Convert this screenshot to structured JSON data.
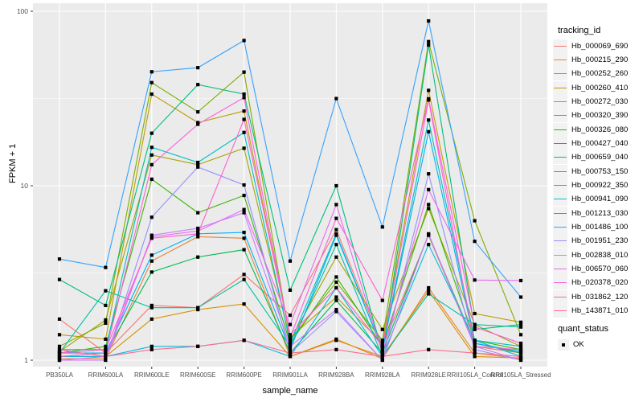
{
  "figure": {
    "background": "#ffffff",
    "panel_background": "#ebebeb",
    "grid_color": "#ffffff",
    "tick_color": "#333333",
    "tick_label_color": "#4d4d4d",
    "legend_key_fill": "#f2f2f2",
    "point_color": "#000000"
  },
  "chart_data": {
    "type": "line",
    "title": "",
    "xlabel": "sample_name",
    "ylabel": "FPKM + 1",
    "y_scale": "log10",
    "y_ticks": [
      "1",
      "10",
      "100"
    ],
    "y_tick_values": [
      1,
      10,
      100
    ],
    "y_minor_values": [
      3.1623,
      31.623
    ],
    "ylim": [
      0.92,
      105
    ],
    "grid": true,
    "legend_position": "right",
    "categories": [
      "PB350LA",
      "RRIM600LA",
      "RRIM600LE",
      "RRIM600SE",
      "RRIM600PE",
      "RRIM901LA",
      "RRIM928BA",
      "RRIM928LA",
      "RRIM928LE",
      "RRII105LA_Control",
      "RRII105LA_Stressed"
    ],
    "legend_title": "tracking_id",
    "legend2_title": "quant_status",
    "legend2_items": [
      {
        "label": "OK",
        "symbol": "filled-square"
      }
    ],
    "series": [
      {
        "name": "Hb_000069_690",
        "color": "#F8766D",
        "values": [
          1.72,
          1.1,
          2.06,
          2.0,
          3.1,
          1.81,
          5.6,
          1.2,
          5.2,
          1.2,
          1.1
        ]
      },
      {
        "name": "Hb_000215_290",
        "color": "#EA8331",
        "values": [
          1.02,
          1.02,
          3.7,
          5.1,
          5.0,
          1.05,
          1.32,
          1.02,
          2.6,
          1.1,
          1.02
        ]
      },
      {
        "name": "Hb_000252_260",
        "color": "#D89000",
        "values": [
          1.05,
          1.05,
          1.72,
          1.95,
          2.1,
          1.05,
          1.3,
          1.05,
          2.5,
          1.05,
          1.03
        ]
      },
      {
        "name": "Hb_000260_410",
        "color": "#C09B00",
        "values": [
          1.4,
          1.32,
          33.5,
          23.0,
          26.8,
          1.35,
          2.3,
          1.25,
          35.2,
          1.85,
          1.65
        ]
      },
      {
        "name": "Hb_000272_030",
        "color": "#A3A500",
        "values": [
          1.12,
          1.7,
          15.0,
          13.2,
          16.4,
          1.3,
          3.9,
          1.5,
          7.4,
          1.6,
          1.2
        ]
      },
      {
        "name": "Hb_000320_390",
        "color": "#7CAE00",
        "values": [
          1.2,
          1.63,
          39.0,
          26.5,
          44.8,
          1.3,
          2.8,
          1.3,
          67.0,
          6.3,
          1.4
        ]
      },
      {
        "name": "Hb_000326_080",
        "color": "#39B600",
        "values": [
          1.1,
          1.2,
          10.9,
          7.0,
          8.8,
          1.25,
          3.0,
          1.2,
          7.8,
          1.3,
          1.15
        ]
      },
      {
        "name": "Hb_000427_040",
        "color": "#00BB4E",
        "values": [
          1.05,
          1.1,
          3.2,
          3.9,
          4.3,
          1.1,
          2.2,
          1.1,
          5.25,
          1.25,
          1.1
        ]
      },
      {
        "name": "Hb_000659_040",
        "color": "#00BF7D",
        "values": [
          2.9,
          2.06,
          20.0,
          38.0,
          33.5,
          2.52,
          10.0,
          1.1,
          64.0,
          1.5,
          1.6
        ]
      },
      {
        "name": "Hb_000753_150",
        "color": "#00C1A3",
        "values": [
          1.1,
          2.5,
          2.0,
          2.0,
          2.9,
          1.2,
          4.6,
          1.05,
          2.4,
          1.6,
          1.55
        ]
      },
      {
        "name": "Hb_000922_350",
        "color": "#00BFC4",
        "values": [
          1.15,
          1.15,
          16.6,
          13.6,
          20.2,
          1.25,
          5.3,
          1.15,
          23.8,
          1.3,
          1.2
        ]
      },
      {
        "name": "Hb_000941_090",
        "color": "#00BAE0",
        "values": [
          1.05,
          1.05,
          1.2,
          1.2,
          1.3,
          1.05,
          2.6,
          1.05,
          4.6,
          1.3,
          1.05
        ]
      },
      {
        "name": "Hb_001213_030",
        "color": "#00B0F6",
        "values": [
          1.1,
          1.1,
          4.0,
          5.3,
          5.4,
          1.15,
          5.2,
          1.15,
          20.4,
          1.25,
          1.12
        ]
      },
      {
        "name": "Hb_001486_100",
        "color": "#35A2FF",
        "values": [
          3.8,
          3.4,
          45.0,
          47.5,
          68.0,
          3.7,
          31.6,
          5.8,
          88.0,
          4.8,
          2.3
        ]
      },
      {
        "name": "Hb_001951_230",
        "color": "#9590FF",
        "values": [
          1.0,
          1.0,
          6.6,
          12.8,
          10.1,
          1.1,
          1.9,
          1.0,
          11.7,
          1.15,
          1.0
        ]
      },
      {
        "name": "Hb_002838_010",
        "color": "#C77CFF",
        "values": [
          1.0,
          1.0,
          5.2,
          5.7,
          7.0,
          1.2,
          1.95,
          1.0,
          5.3,
          1.2,
          1.0
        ]
      },
      {
        "name": "Hb_006570_060",
        "color": "#E76BF3",
        "values": [
          1.0,
          1.05,
          5.1,
          5.5,
          7.3,
          1.6,
          7.8,
          1.1,
          9.5,
          2.88,
          2.86
        ]
      },
      {
        "name": "Hb_020378_020",
        "color": "#FA62DB",
        "values": [
          1.05,
          1.1,
          13.2,
          22.5,
          32.0,
          1.35,
          6.5,
          2.2,
          31.5,
          1.55,
          1.25
        ]
      },
      {
        "name": "Hb_031862_120",
        "color": "#FF61CC",
        "values": [
          1.1,
          1.15,
          5.0,
          5.3,
          24.0,
          1.4,
          2.6,
          1.2,
          31.0,
          1.2,
          1.15
        ]
      },
      {
        "name": "Hb_143871_010",
        "color": "#FF6C90",
        "values": [
          1.15,
          1.05,
          1.15,
          1.2,
          1.3,
          1.1,
          1.15,
          1.05,
          1.15,
          1.1,
          1.05
        ]
      }
    ]
  }
}
